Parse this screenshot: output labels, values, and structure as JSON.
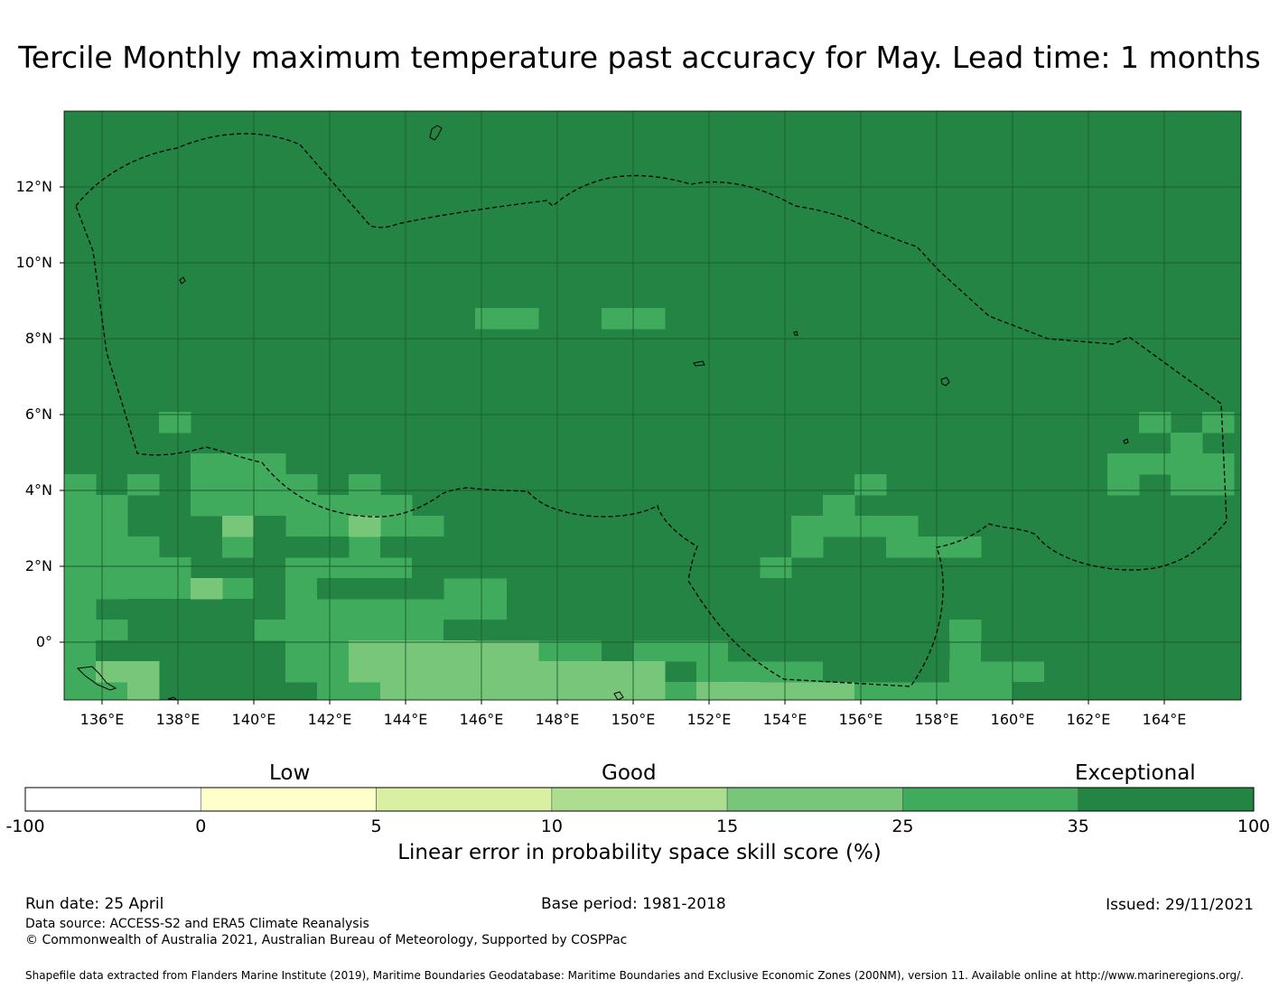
{
  "title": "Tercile Monthly maximum temperature past accuracy for May. Lead time: 1 months",
  "map": {
    "lon_ticks": [
      "136°E",
      "138°E",
      "140°E",
      "142°E",
      "144°E",
      "146°E",
      "148°E",
      "150°E",
      "152°E",
      "154°E",
      "156°E",
      "158°E",
      "160°E",
      "162°E",
      "164°E"
    ],
    "lat_ticks": [
      "12°N",
      "10°N",
      "8°N",
      "6°N",
      "4°N",
      "2°N",
      "0°"
    ],
    "background_color": "#238443",
    "cell_colors": {
      "exceptional": "#238443",
      "good_high": "#41ab5d",
      "good_mid": "#78c679"
    }
  },
  "legend": {
    "categories": [
      "Low",
      "Good",
      "Exceptional"
    ],
    "bins": [
      {
        "from": "-100",
        "color": "#ffffff"
      },
      {
        "from": "0",
        "color": "#ffffcc"
      },
      {
        "from": "5",
        "color": "#d9f0a3"
      },
      {
        "from": "10",
        "color": "#addd8e"
      },
      {
        "from": "15",
        "color": "#78c679"
      },
      {
        "from": "25",
        "color": "#41ab5d"
      },
      {
        "from": "35",
        "color": "#238443"
      }
    ],
    "tick_labels": [
      "-100",
      "0",
      "5",
      "10",
      "15",
      "25",
      "35",
      "100"
    ],
    "title": "Linear error in probability space skill score (%)"
  },
  "footer": {
    "run_date": "Run date: 25 April",
    "base_period": "Base period: 1981-2018",
    "issued": "Issued: 29/11/2021",
    "data_source": "Data source: ACCESS-S2 and ERA5 Climate Reanalysis",
    "copyright": "© Commonwealth of Australia 2021, Australian Bureau of Meteorology, Supported by COSPPac",
    "shapefile": "Shapefile data extracted from Flanders Marine Institute (2019), Maritime Boundaries Geodatabase: Maritime Boundaries and Exclusive Economic Zones (200NM), version 11. Available online at http://www.marineregions.org/."
  }
}
